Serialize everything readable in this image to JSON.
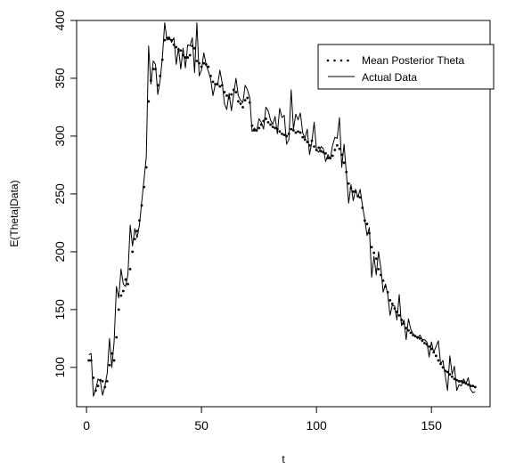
{
  "chart_data": {
    "type": "line",
    "xlabel": "t",
    "ylabel": "E(Theta|Data)",
    "xlim": [
      -4.3,
      175.5
    ],
    "ylim": [
      66,
      400
    ],
    "x_ticks": [
      0,
      50,
      100,
      150
    ],
    "y_ticks": [
      100,
      150,
      200,
      250,
      300,
      350,
      400
    ],
    "legend_position": "top-right",
    "series": [
      {
        "name": "Mean Posterior Theta",
        "style": "dotted",
        "color": "#000000",
        "x": [
          1,
          2,
          3,
          4,
          5,
          6,
          7,
          8,
          9,
          10,
          11,
          12,
          13,
          14,
          15,
          16,
          17,
          18,
          19,
          20,
          21,
          22,
          23,
          24,
          25,
          26,
          27,
          28,
          29,
          30,
          31,
          32,
          33,
          34,
          35,
          36,
          37,
          38,
          39,
          40,
          41,
          42,
          43,
          44,
          45,
          46,
          47,
          48,
          49,
          50,
          51,
          52,
          53,
          54,
          55,
          56,
          57,
          58,
          59,
          60,
          61,
          62,
          63,
          64,
          65,
          66,
          67,
          68,
          69,
          70,
          71,
          72,
          73,
          74,
          75,
          76,
          77,
          78,
          79,
          80,
          81,
          82,
          83,
          84,
          85,
          86,
          87,
          88,
          89,
          90,
          91,
          92,
          93,
          94,
          95,
          96,
          97,
          98,
          99,
          100,
          101,
          102,
          103,
          104,
          105,
          106,
          107,
          108,
          109,
          110,
          111,
          112,
          113,
          114,
          115,
          116,
          117,
          118,
          119,
          120,
          121,
          122,
          123,
          124,
          125,
          126,
          127,
          128,
          129,
          130,
          131,
          132,
          133,
          134,
          135,
          136,
          137,
          138,
          139,
          140,
          141,
          142,
          143,
          144,
          145,
          146,
          147,
          148,
          149,
          150,
          151,
          152,
          153,
          154,
          155,
          156,
          157,
          158,
          159,
          160,
          161,
          162,
          163,
          164,
          165,
          166,
          167,
          168,
          169
        ],
        "values": [
          106,
          106,
          91,
          80,
          84,
          89,
          88,
          83,
          88,
          102,
          112,
          106,
          126,
          150,
          162,
          166,
          176,
          172,
          185,
          200,
          211,
          218,
          227,
          240,
          256,
          273,
          330,
          348,
          358,
          358,
          344,
          352,
          366,
          383,
          385,
          384,
          383,
          379,
          377,
          375,
          374,
          370,
          368,
          368,
          370,
          378,
          376,
          365,
          363,
          360,
          363,
          362,
          360,
          352,
          347,
          345,
          345,
          343,
          344,
          338,
          335,
          333,
          336,
          340,
          338,
          330,
          328,
          325,
          331,
          333,
          329,
          309,
          305,
          305,
          307,
          310,
          313,
          315,
          312,
          310,
          308,
          307,
          306,
          304,
          302,
          301,
          300,
          302,
          306,
          305,
          303,
          304,
          303,
          299,
          297,
          295,
          292,
          296,
          291,
          288,
          290,
          287,
          286,
          285,
          281,
          281,
          283,
          288,
          292,
          289,
          284,
          277,
          269,
          259,
          255,
          252,
          252,
          248,
          247,
          238,
          227,
          224,
          216,
          204,
          199,
          194,
          185,
          180,
          175,
          170,
          165,
          158,
          155,
          151,
          148,
          145,
          141,
          138,
          134,
          132,
          130,
          128,
          127,
          126,
          125,
          123,
          121,
          120,
          118,
          116,
          113,
          110,
          106,
          103,
          100,
          97,
          96,
          94,
          92,
          90,
          89,
          88,
          88,
          87,
          86,
          85,
          84,
          84,
          83
        ]
      },
      {
        "name": "Actual Data",
        "style": "solid",
        "color": "#000000",
        "x": [
          1,
          2,
          3,
          4,
          5,
          6,
          7,
          8,
          9,
          10,
          11,
          12,
          13,
          14,
          15,
          16,
          17,
          18,
          19,
          20,
          21,
          22,
          23,
          24,
          25,
          26,
          27,
          28,
          29,
          30,
          31,
          32,
          33,
          34,
          35,
          36,
          37,
          38,
          39,
          40,
          41,
          42,
          43,
          44,
          45,
          46,
          47,
          48,
          49,
          50,
          51,
          52,
          53,
          54,
          55,
          56,
          57,
          58,
          59,
          60,
          61,
          62,
          63,
          64,
          65,
          66,
          67,
          68,
          69,
          70,
          71,
          72,
          73,
          74,
          75,
          76,
          77,
          78,
          79,
          80,
          81,
          82,
          83,
          84,
          85,
          86,
          87,
          88,
          89,
          90,
          91,
          92,
          93,
          94,
          95,
          96,
          97,
          98,
          99,
          100,
          101,
          102,
          103,
          104,
          105,
          106,
          107,
          108,
          109,
          110,
          111,
          112,
          113,
          114,
          115,
          116,
          117,
          118,
          119,
          120,
          121,
          122,
          123,
          124,
          125,
          126,
          127,
          128,
          129,
          130,
          131,
          132,
          133,
          134,
          135,
          136,
          137,
          138,
          139,
          140,
          141,
          142,
          143,
          144,
          145,
          146,
          147,
          148,
          149,
          150,
          151,
          152,
          153,
          154,
          155,
          156,
          157,
          158,
          159,
          160,
          161,
          162,
          163,
          164,
          165,
          166,
          167,
          168,
          169
        ],
        "values": [
          111,
          112,
          75,
          81,
          90,
          88,
          76,
          84,
          95,
          125,
          100,
          122,
          170,
          160,
          185,
          172,
          170,
          180,
          223,
          205,
          220,
          212,
          223,
          243,
          262,
          282,
          378,
          345,
          365,
          362,
          336,
          348,
          368,
          398,
          383,
          386,
          381,
          385,
          362,
          376,
          358,
          376,
          359,
          379,
          378,
          385,
          355,
          398,
          352,
          357,
          372,
          362,
          356,
          349,
          335,
          345,
          344,
          357,
          346,
          328,
          323,
          337,
          322,
          336,
          350,
          335,
          331,
          329,
          344,
          340,
          333,
          304,
          307,
          304,
          315,
          312,
          306,
          325,
          322,
          314,
          310,
          317,
          302,
          324,
          316,
          318,
          293,
          297,
          340,
          306,
          319,
          314,
          320,
          303,
          298,
          306,
          284,
          295,
          312,
          288,
          286,
          291,
          289,
          278,
          284,
          280,
          292,
          299,
          298,
          316,
          273,
          293,
          268,
          242,
          258,
          244,
          254,
          247,
          254,
          240,
          228,
          214,
          221,
          178,
          196,
          180,
          200,
          186,
          165,
          172,
          163,
          145,
          154,
          153,
          141,
          163,
          136,
          141,
          124,
          142,
          133,
          129,
          127,
          125,
          128,
          124,
          124,
          122,
          109,
          122,
          113,
          118,
          123,
          103,
          106,
          93,
          80,
          110,
          94,
          101,
          80,
          85,
          84,
          90,
          86,
          91,
          81,
          78,
          79
        ]
      }
    ]
  }
}
